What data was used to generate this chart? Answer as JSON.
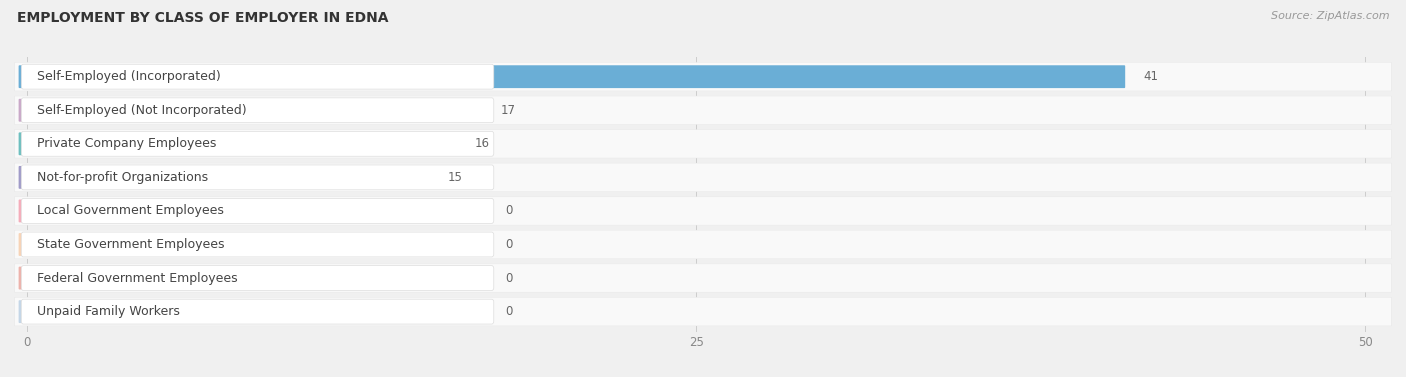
{
  "title": "EMPLOYMENT BY CLASS OF EMPLOYER IN EDNA",
  "source": "Source: ZipAtlas.com",
  "categories": [
    "Self-Employed (Incorporated)",
    "Self-Employed (Not Incorporated)",
    "Private Company Employees",
    "Not-for-profit Organizations",
    "Local Government Employees",
    "State Government Employees",
    "Federal Government Employees",
    "Unpaid Family Workers"
  ],
  "values": [
    41,
    17,
    16,
    15,
    0,
    0,
    0,
    0
  ],
  "bar_colors": [
    "#6aaed6",
    "#c9a8c8",
    "#6dbfbf",
    "#a09bc8",
    "#f48ca0",
    "#f7c49a",
    "#e8948a",
    "#aec8e0"
  ],
  "xlim_max": 50,
  "xticks": [
    0,
    25,
    50
  ],
  "background_color": "#f0f0f0",
  "row_bg_color": "#ffffff",
  "row_alt_bg": "#e8e8e8",
  "title_fontsize": 10,
  "label_fontsize": 9,
  "value_fontsize": 8.5,
  "source_fontsize": 8
}
